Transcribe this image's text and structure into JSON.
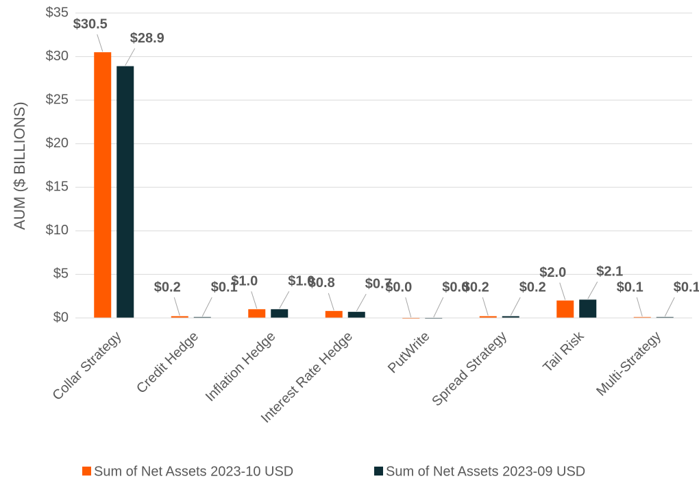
{
  "chart_data": {
    "type": "bar",
    "y_label": "AUM ($ BILLIONS)",
    "categories": [
      "Collar Strategy",
      "Credit Hedge",
      "Inflation Hedge",
      "Interest Rate Hedge",
      "PutWrite",
      "Spread Strategy",
      "Tail Risk",
      "Multi-Strategy"
    ],
    "series": [
      {
        "name": "Sum of Net Assets 2023-10 USD",
        "color": "#ff5a00",
        "values": [
          30.5,
          0.2,
          1.0,
          0.8,
          0.0,
          0.2,
          2.0,
          0.1
        ],
        "value_labels": [
          "$30.5",
          "$0.2",
          "$1.0",
          "$0.8",
          "$0.0",
          "$0.2",
          "$2.0",
          "$0.1"
        ]
      },
      {
        "name": "Sum of Net Assets 2023-09 USD",
        "color": "#0d2e36",
        "values": [
          28.9,
          0.1,
          1.0,
          0.7,
          0.0,
          0.2,
          2.1,
          0.1
        ],
        "value_labels": [
          "$28.9",
          "$0.1",
          "$1.0",
          "$0.7",
          "$0.0",
          "$0.2",
          "$2.1",
          "$0.1"
        ]
      }
    ],
    "ylim": [
      0,
      35
    ],
    "yticks": [
      {
        "value": 0,
        "label": "$0"
      },
      {
        "value": 5,
        "label": "$5"
      },
      {
        "value": 10,
        "label": "$10"
      },
      {
        "value": 15,
        "label": "$15"
      },
      {
        "value": 20,
        "label": "$20"
      },
      {
        "value": 25,
        "label": "$25"
      },
      {
        "value": 30,
        "label": "$30"
      },
      {
        "value": 35,
        "label": "$35"
      }
    ],
    "grid": true,
    "legend": "bottom"
  }
}
